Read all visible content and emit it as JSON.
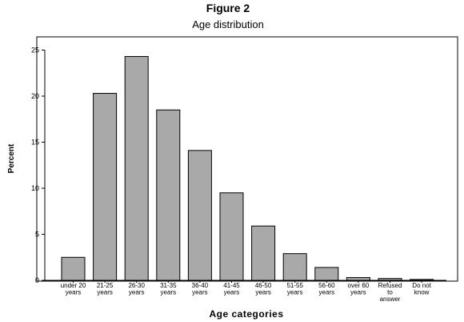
{
  "chart_data": {
    "type": "bar",
    "title": "Figure 2",
    "subtitle": "Age distribution",
    "xlabel": "Age categories",
    "ylabel": "Percent",
    "ylim": [
      0,
      26
    ],
    "yticks": [
      "0",
      "5",
      "10",
      "15",
      "20",
      "25"
    ],
    "grid": false,
    "categories": [
      [
        "under 20",
        "years"
      ],
      [
        "21-25",
        "years"
      ],
      [
        "26-30",
        "years"
      ],
      [
        "31-35",
        "years"
      ],
      [
        "36-40",
        "years"
      ],
      [
        "41-45",
        "years"
      ],
      [
        "46-50",
        "years"
      ],
      [
        "51-55",
        "years"
      ],
      [
        "56-60",
        "years"
      ],
      [
        "over 60",
        "years"
      ],
      [
        "Refused",
        "to",
        "answer"
      ],
      [
        "Do not",
        "know"
      ]
    ],
    "values": [
      2.5,
      20.3,
      24.3,
      18.5,
      14.1,
      9.5,
      5.9,
      2.9,
      1.4,
      0.3,
      0.2,
      0.1
    ],
    "colors": {
      "bar_fill": "#a9a9a9",
      "bar_stroke": "#000000",
      "axis": "#000000",
      "frame": "#000000"
    }
  }
}
